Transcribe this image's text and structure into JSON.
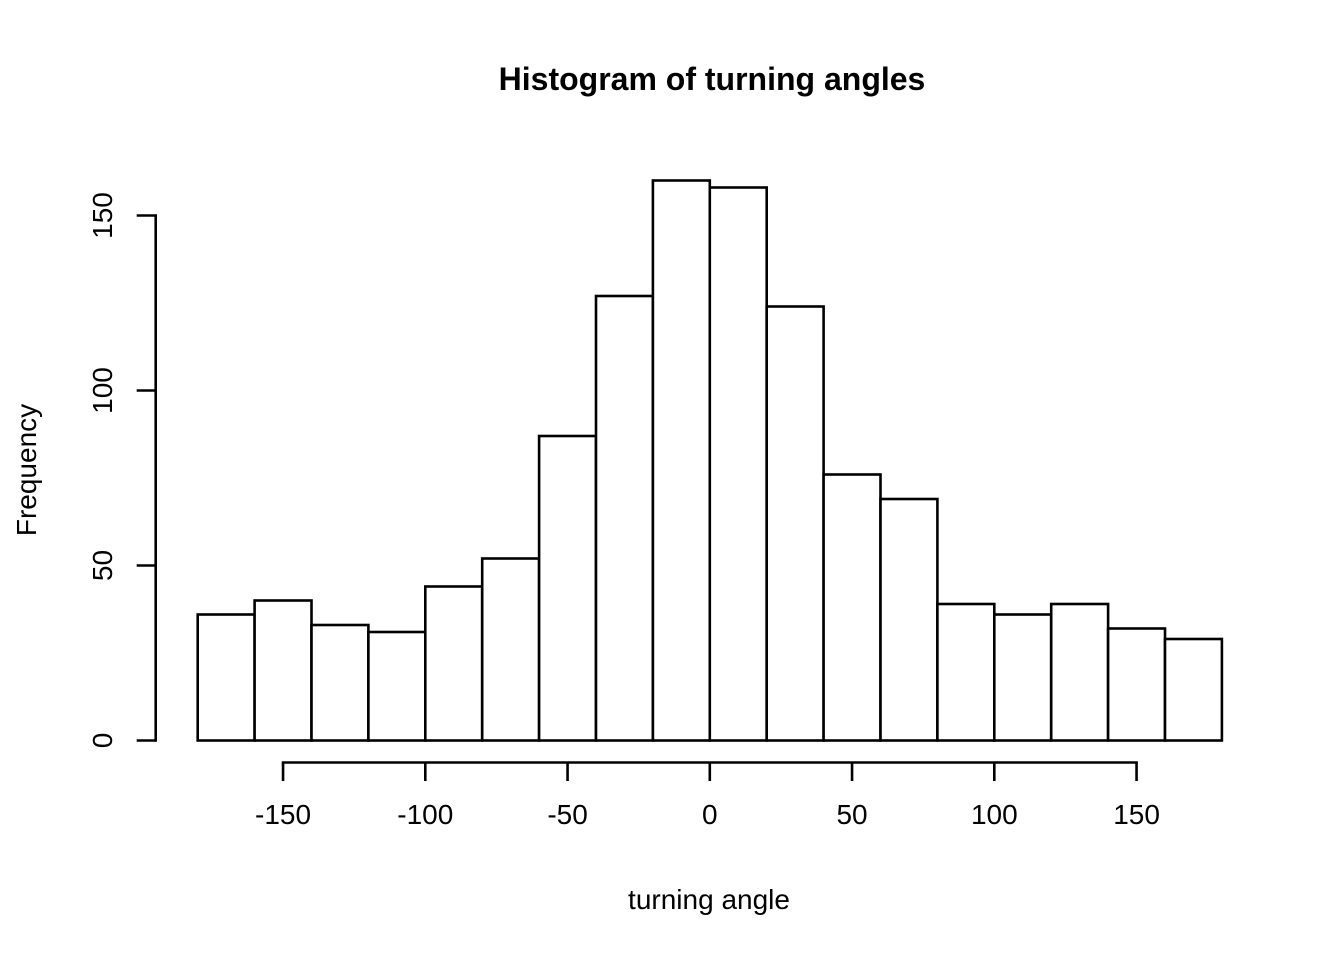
{
  "chart_data": {
    "type": "bar",
    "subtype": "histogram",
    "title": "Histogram of turning angles",
    "xlabel": "turning angle",
    "ylabel": "Frequency",
    "bin_start": -180,
    "bin_width": 20,
    "bin_edges": [
      -180,
      -160,
      -140,
      -120,
      -100,
      -80,
      -60,
      -40,
      -20,
      0,
      20,
      40,
      60,
      80,
      100,
      120,
      140,
      160,
      180
    ],
    "counts": [
      36,
      40,
      33,
      31,
      44,
      52,
      87,
      127,
      160,
      158,
      124,
      76,
      69,
      39,
      36,
      39,
      32,
      29
    ],
    "x_ticks": [
      -150,
      -100,
      -50,
      0,
      50,
      100,
      150
    ],
    "y_ticks": [
      0,
      50,
      100,
      150
    ],
    "xlim": [
      -180,
      180
    ],
    "ylim": [
      0,
      160
    ],
    "grid": false,
    "legend": "none",
    "bar_fill": "#ffffff",
    "bar_border": "#000000",
    "axis_color": "#000000",
    "background": "#ffffff"
  }
}
